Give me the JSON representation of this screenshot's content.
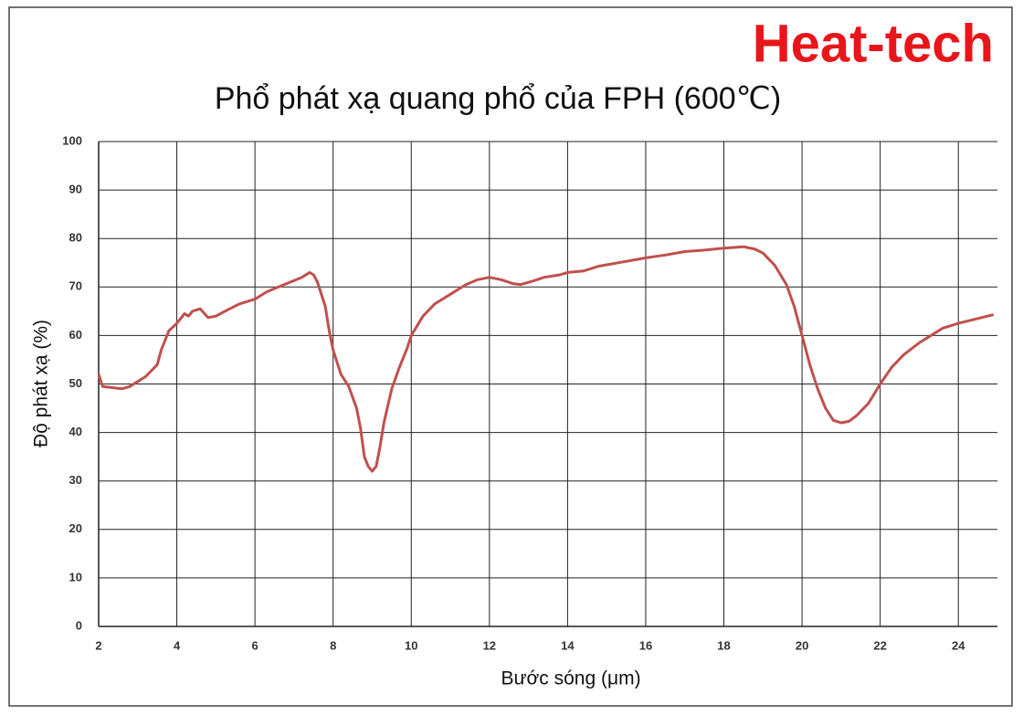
{
  "brand": "Heat-tech",
  "chart_data": {
    "type": "line",
    "title": "Phổ phát xạ quang phổ của FPH (600℃)",
    "x_label": "Bước sóng (μm)",
    "y_label": "Độ phát xạ (%)",
    "color": "#c0504d",
    "grid": true,
    "xlim": [
      2,
      25
    ],
    "xticks": [
      2,
      4,
      6,
      8,
      10,
      12,
      14,
      16,
      18,
      20,
      22,
      24
    ],
    "ylim": [
      0,
      100
    ],
    "yticks": [
      0,
      10,
      20,
      30,
      40,
      50,
      60,
      70,
      80,
      90,
      100
    ],
    "x": [
      2.0,
      2.1,
      2.3,
      2.6,
      2.8,
      3.0,
      3.2,
      3.5,
      3.6,
      3.8,
      4.0,
      4.2,
      4.3,
      4.4,
      4.6,
      4.8,
      5.0,
      5.3,
      5.6,
      5.8,
      6.0,
      6.3,
      6.6,
      6.9,
      7.2,
      7.4,
      7.5,
      7.6,
      7.8,
      7.9,
      8.0,
      8.2,
      8.4,
      8.6,
      8.7,
      8.8,
      8.9,
      9.0,
      9.1,
      9.2,
      9.3,
      9.5,
      9.7,
      9.9,
      10.0,
      10.3,
      10.6,
      11.0,
      11.4,
      11.7,
      12.0,
      12.3,
      12.6,
      12.8,
      13.1,
      13.4,
      13.8,
      14.0,
      14.4,
      14.8,
      15.5,
      16.0,
      16.5,
      17.0,
      17.5,
      18.0,
      18.5,
      18.8,
      19.0,
      19.3,
      19.6,
      19.8,
      20.0,
      20.2,
      20.4,
      20.6,
      20.8,
      21.0,
      21.2,
      21.4,
      21.7,
      22.0,
      22.3,
      22.6,
      23.0,
      23.3,
      23.6,
      24.0,
      24.5,
      24.9
    ],
    "values": [
      52,
      49.5,
      49.3,
      49,
      49.5,
      50.5,
      51.5,
      54,
      57,
      61,
      62.5,
      64.5,
      64,
      65,
      65.5,
      63.7,
      64,
      65.3,
      66.5,
      67,
      67.5,
      69,
      70,
      71,
      72,
      73,
      72.5,
      71,
      66,
      61,
      57,
      52,
      49.5,
      45,
      41,
      35,
      33,
      32,
      33,
      37,
      42,
      49,
      53.5,
      57.5,
      60,
      64,
      66.5,
      68.5,
      70.5,
      71.5,
      72,
      71.5,
      70.7,
      70.5,
      71.2,
      72,
      72.5,
      73,
      73.3,
      74.3,
      75.3,
      76,
      76.6,
      77.3,
      77.6,
      78,
      78.3,
      77.8,
      77,
      74.5,
      70.5,
      66,
      60,
      54,
      49,
      45,
      42.5,
      42,
      42.3,
      43.5,
      46,
      50,
      53.5,
      56,
      58.5,
      60,
      61.5,
      62.5,
      63.5,
      64.3
    ]
  }
}
